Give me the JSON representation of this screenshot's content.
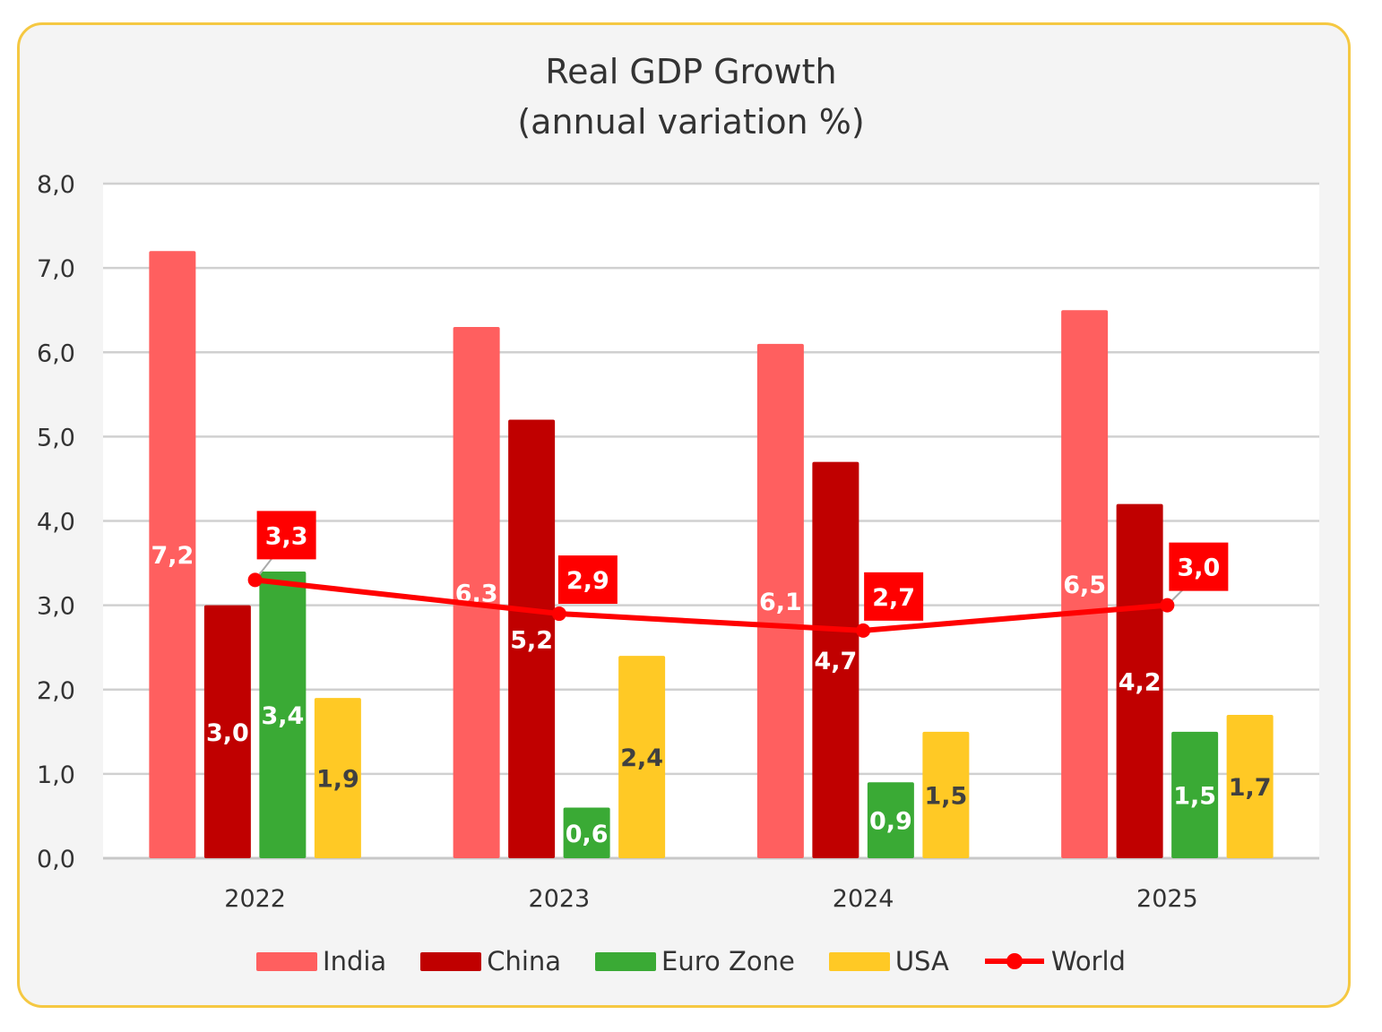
{
  "chart_data": {
    "type": "bar",
    "title": "Real GDP Growth",
    "subtitle": "(annual variation %)",
    "categories": [
      "2022",
      "2023",
      "2024",
      "2025"
    ],
    "ylim": [
      0,
      8
    ],
    "yticks": [
      "0,0",
      "1,0",
      "2,0",
      "3,0",
      "4,0",
      "5,0",
      "6,0",
      "7,0",
      "8,0"
    ],
    "grid": true,
    "legend_placement": "bottom",
    "series": [
      {
        "name": "India",
        "kind": "bar",
        "color": "#ff5f5f",
        "values": [
          7.2,
          6.3,
          6.1,
          6.5
        ],
        "labels": [
          "7,2",
          "6,3",
          "6,1",
          "6,5"
        ],
        "label_color": "#ffffff"
      },
      {
        "name": "China",
        "kind": "bar",
        "color": "#c00000",
        "values": [
          3.0,
          5.2,
          4.7,
          4.2
        ],
        "labels": [
          "3,0",
          "5,2",
          "4,7",
          "4,2"
        ],
        "label_color": "#ffffff"
      },
      {
        "name": "Euro Zone",
        "kind": "bar",
        "color": "#3aaa35",
        "values": [
          3.4,
          0.6,
          0.9,
          1.5
        ],
        "labels": [
          "3,4",
          "0,6",
          "0,9",
          "1,5"
        ],
        "label_color": "#ffffff"
      },
      {
        "name": "USA",
        "kind": "bar",
        "color": "#ffc925",
        "values": [
          1.9,
          2.4,
          1.5,
          1.7
        ],
        "labels": [
          "1,9",
          "2,4",
          "1,5",
          "1,7"
        ],
        "label_color": "#404040"
      },
      {
        "name": "World",
        "kind": "line",
        "color": "#ff0000",
        "values": [
          3.3,
          2.9,
          2.7,
          3.0
        ],
        "labels": [
          "3,3",
          "2,9",
          "2,7",
          "3,0"
        ],
        "label_color": "#ffffff"
      }
    ]
  }
}
